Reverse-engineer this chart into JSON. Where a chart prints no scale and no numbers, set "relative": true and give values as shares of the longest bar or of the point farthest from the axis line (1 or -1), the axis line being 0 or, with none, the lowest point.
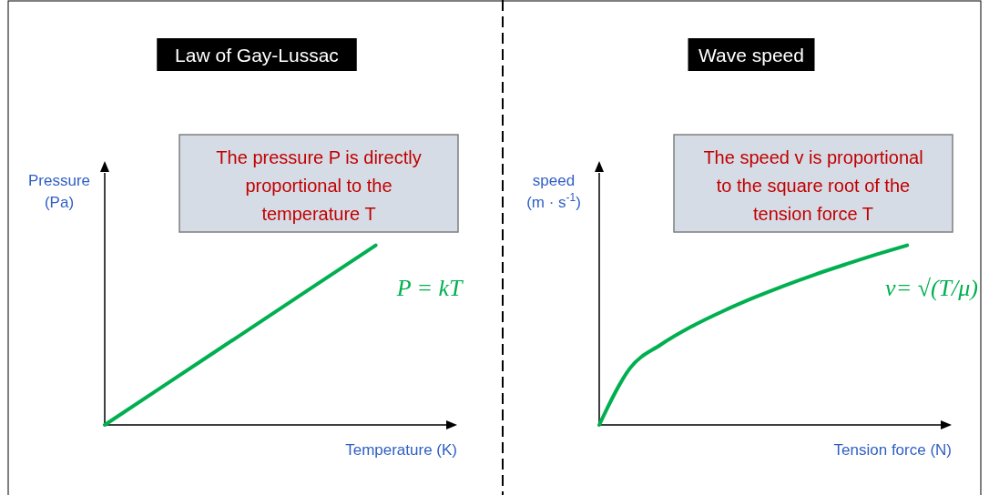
{
  "chart_data": [
    {
      "type": "line",
      "title": "Law of Gay-Lussac",
      "xlabel": "Temperature (K)",
      "ylabel": "Pressure (Pa)",
      "relative": true,
      "categories": [
        null,
        null,
        null,
        null,
        null,
        null
      ],
      "series": [
        {
          "color": "#00b050",
          "values": [
            0,
            0.25,
            0.5,
            0.75,
            1,
            null
          ]
        }
      ],
      "annotations": [
        "The pressure P is directly proportional to the temperature T",
        "P = kT"
      ]
    },
    {
      "type": "line",
      "title": "Wave speed",
      "xlabel": "Tension force (N)",
      "ylabel": "speed (m · s$^{-1}$)",
      "relative": true,
      "categories": [
        null,
        null,
        null,
        null,
        null,
        null,
        null,
        null,
        null,
        null,
        null,
        null
      ],
      "series": [
        {
          "color": "#00b050",
          "values": [
            0,
            0.316,
            0.447,
            0.548,
            0.632,
            0.707,
            0.775,
            0.837,
            0.894,
            0.949,
            1,
            null
          ]
        }
      ],
      "annotations": [
        "The speed v is proportional to the square root of the tension force T",
        "v= √(T/μ)"
      ]
    }
  ]
}
